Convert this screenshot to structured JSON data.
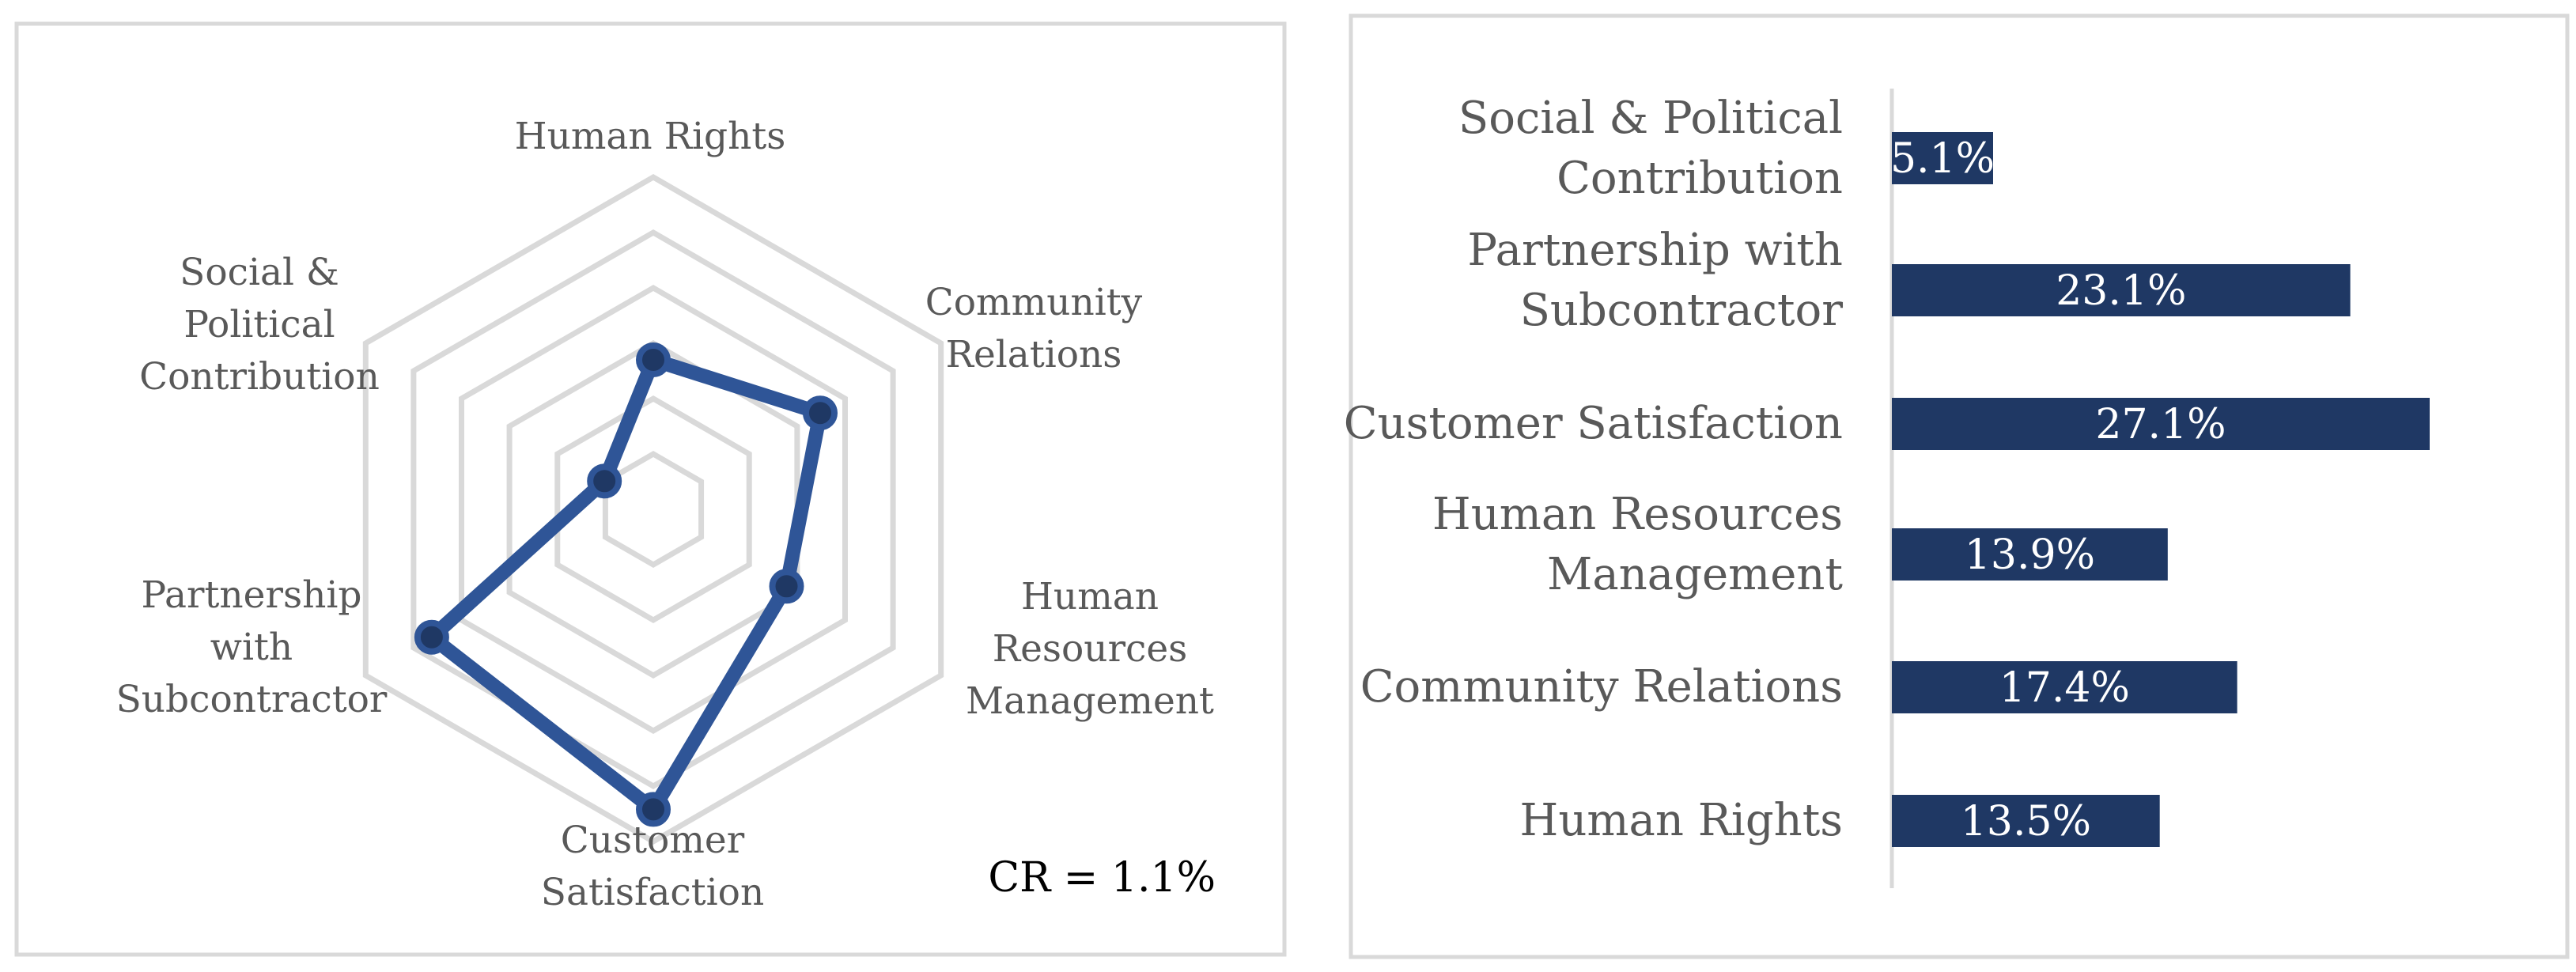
{
  "chart_data": [
    {
      "type": "radar",
      "categories": [
        "Human Rights",
        "Community Relations",
        "Human Resources Management",
        "Customer Satisfaction",
        "Partnership with Subcontractor",
        "Social & Political Contribution"
      ],
      "values": [
        13.5,
        17.4,
        13.9,
        27.1,
        23.1,
        5.1
      ],
      "rlim": [
        0,
        30
      ],
      "grid_levels": 6,
      "annotation": "CR = 1.1%",
      "series_color": "#2f5597",
      "marker_color": "#1f3864",
      "grid_color": "#d9d9d9"
    },
    {
      "type": "bar",
      "orientation": "horizontal",
      "categories": [
        "Social & Political Contribution",
        "Partnership with Subcontractor",
        "Customer Satisfaction",
        "Human Resources Management",
        "Community Relations",
        "Human Rights"
      ],
      "values": [
        5.1,
        23.1,
        27.1,
        13.9,
        17.4,
        13.5
      ],
      "data_labels": [
        "5.1%",
        "23.1%",
        "27.1%",
        "13.9%",
        "17.4%",
        "13.5%"
      ],
      "xlim": [
        0,
        30
      ],
      "bar_color": "#1f3864"
    }
  ]
}
